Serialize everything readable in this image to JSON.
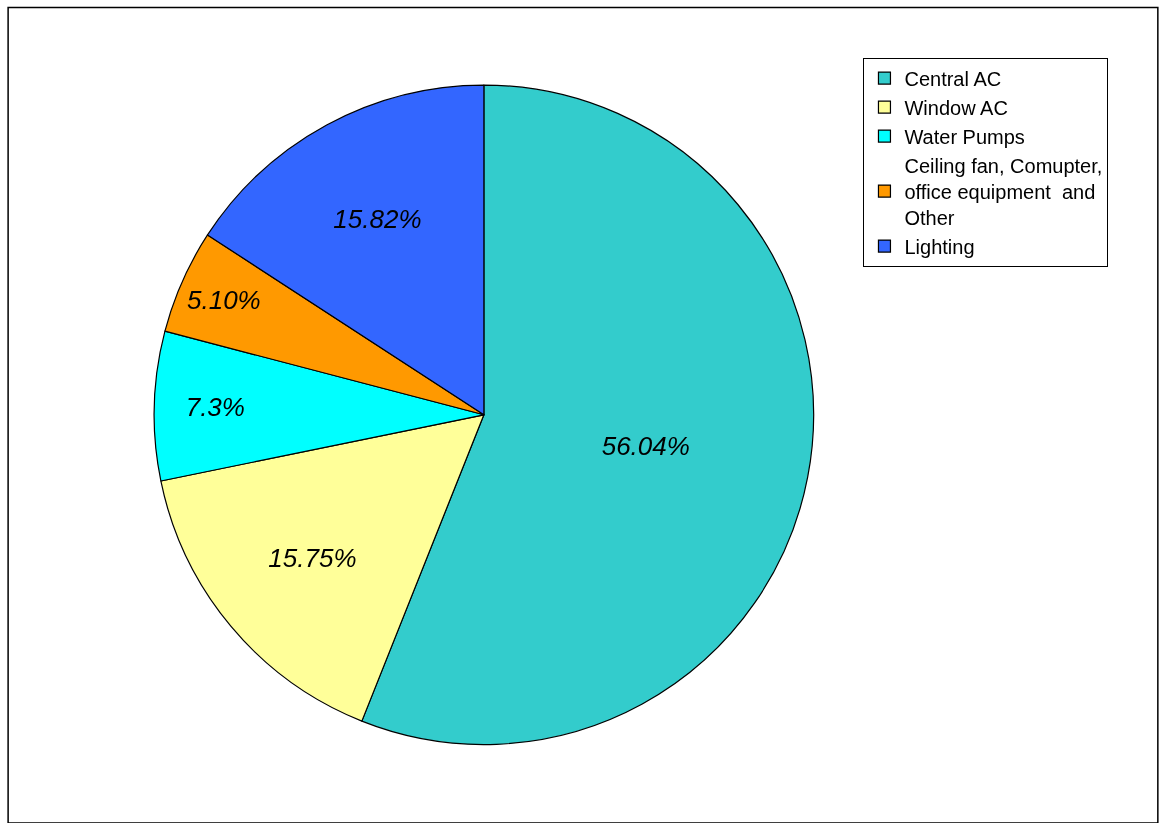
{
  "chart_data": {
    "type": "pie",
    "categories": [
      "Central AC",
      "Window AC",
      "Water Pumps",
      "Ceiling fan, Comupter, office equipment  and Other",
      "Lighting"
    ],
    "values": [
      56.04,
      15.75,
      7.3,
      5.1,
      15.82
    ],
    "value_labels": [
      "56.04%",
      "15.75%",
      "7.3%",
      "5.10%",
      "15.82%"
    ],
    "colors": [
      "#33cccc",
      "#ffff99",
      "#00ffff",
      "#ff9900",
      "#3366ff"
    ],
    "legend": "right"
  }
}
